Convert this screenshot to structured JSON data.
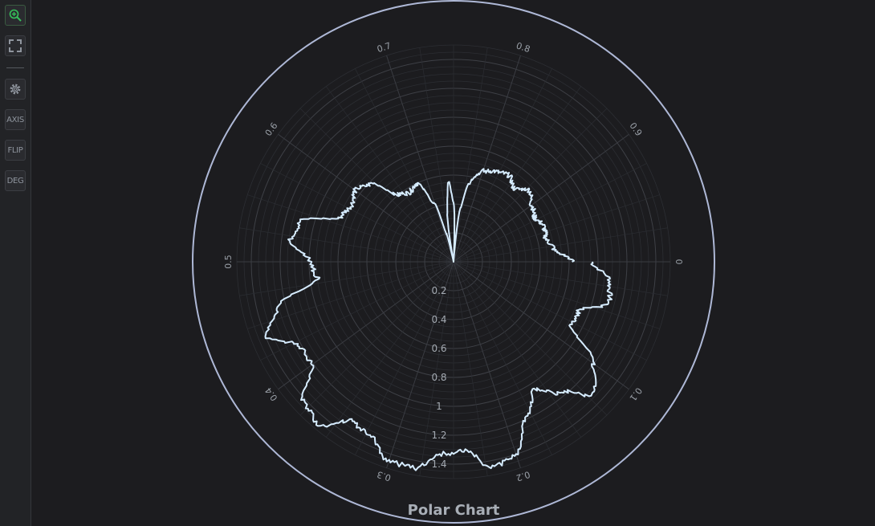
{
  "toolbar": {
    "zoom_icon": "zoom-in-icon",
    "fit_icon": "fullscreen-icon",
    "settings_icon": "gear-icon",
    "axis_label": "AXIS",
    "flip_label": "FLIP",
    "deg_label": "DEG"
  },
  "colors": {
    "background": "#1c1c1f",
    "outer_circle": "#aeb8d6",
    "series_line": "#d6ecff",
    "grid": "#3a3c42",
    "tick_text": "#9aa0a8",
    "zoom_accent": "#35c25a"
  },
  "chart_data": {
    "type": "line",
    "polar": true,
    "title": "Polar Chart",
    "angular_axis": {
      "range": [
        0,
        1
      ],
      "ticks": [
        {
          "value": 0,
          "label": "0"
        },
        {
          "value": 0.1,
          "label": "0.1"
        },
        {
          "value": 0.2,
          "label": "0.2"
        },
        {
          "value": 0.3,
          "label": "0.3"
        },
        {
          "value": 0.4,
          "label": "0.4"
        },
        {
          "value": 0.5,
          "label": "0.5"
        },
        {
          "value": 0.6,
          "label": "0.6"
        },
        {
          "value": 0.7,
          "label": "0.7"
        },
        {
          "value": 0.8,
          "label": "0.8"
        },
        {
          "value": 0.9,
          "label": "0.9"
        }
      ],
      "direction": "clockwise",
      "zero_position": "right"
    },
    "radial_axis": {
      "range": [
        0,
        1.5
      ],
      "ticks": [
        {
          "value": 0.2,
          "label": "0.2"
        },
        {
          "value": 0.4,
          "label": "0.4"
        },
        {
          "value": 0.6,
          "label": "0.6"
        },
        {
          "value": 0.8,
          "label": "0.8"
        },
        {
          "value": 1,
          "label": "1"
        },
        {
          "value": 1.2,
          "label": "1.2"
        },
        {
          "value": 1.4,
          "label": "1.4"
        }
      ]
    },
    "grid": true,
    "series": [
      {
        "theta": [
          0,
          0.02,
          0.04,
          0.06,
          0.08,
          0.1,
          0.12,
          0.14,
          0.16,
          0.18,
          0.2,
          0.22,
          0.24,
          0.26,
          0.28,
          0.3,
          0.32,
          0.34,
          0.36,
          0.38,
          0.4,
          0.42,
          0.44,
          0.46,
          0.48,
          0.5,
          0.52,
          0.54,
          0.56,
          0.58,
          0.6,
          0.62,
          0.64,
          0.66,
          0.68,
          0.7,
          0.71,
          0.72,
          0.73,
          0.74,
          0.75,
          0.76,
          0.77,
          0.78,
          0.79,
          0.8,
          0.82,
          0.84,
          0.86,
          0.88,
          0.9,
          0.92,
          0.94,
          0.96,
          0.98,
          1.0
        ],
        "r": [
          0.96,
          1.09,
          1.11,
          0.93,
          0.93,
          1.2,
          1.33,
          1.17,
          1.05,
          1.19,
          1.4,
          1.45,
          1.3,
          1.33,
          1.45,
          1.45,
          1.34,
          1.31,
          1.46,
          1.42,
          1.21,
          1.21,
          1.39,
          1.26,
          0.95,
          0.99,
          1.14,
          1.1,
          0.84,
          0.81,
          0.84,
          0.79,
          0.6,
          0.57,
          0.6,
          0.42,
          0.2,
          0.0,
          0.35,
          0.55,
          0.4,
          0.0,
          0.38,
          0.55,
          0.62,
          0.66,
          0.69,
          0.71,
          0.66,
          0.72,
          0.67,
          0.64,
          0.67,
          0.66,
          0.7,
          0.82
        ]
      }
    ]
  }
}
